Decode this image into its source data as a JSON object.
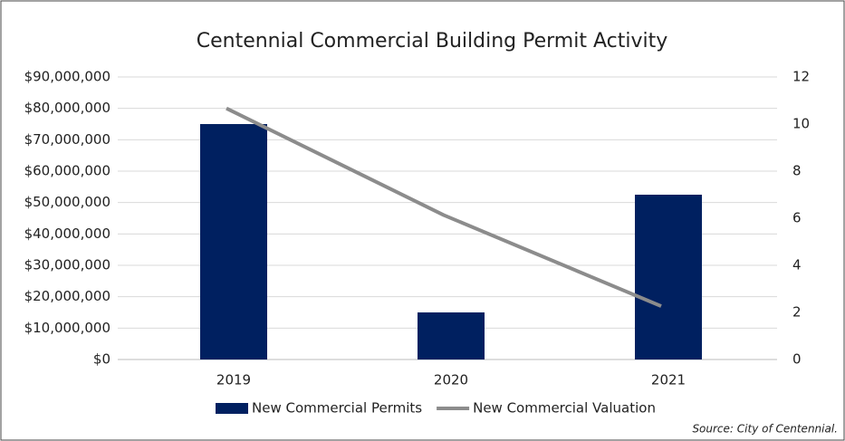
{
  "chart_data": {
    "type": "bar",
    "title": "Centennial Commercial Building Permit Activity",
    "categories": [
      "2019",
      "2020",
      "2021"
    ],
    "series": [
      {
        "name": "New Commercial Permits",
        "type": "bar",
        "axis": "y2",
        "color": "#002060",
        "values": [
          10,
          2,
          7
        ]
      },
      {
        "name": "New Commercial Valuation",
        "type": "line",
        "axis": "y",
        "color": "#8c8c8c",
        "values": [
          80000000,
          46000000,
          17000000
        ]
      }
    ],
    "ylim": [
      0,
      90000000
    ],
    "yticks": [
      {
        "value": 0,
        "label": "$0"
      },
      {
        "value": 10000000,
        "label": "$10,000,000"
      },
      {
        "value": 20000000,
        "label": "$20,000,000"
      },
      {
        "value": 30000000,
        "label": "$30,000,000"
      },
      {
        "value": 40000000,
        "label": "$40,000,000"
      },
      {
        "value": 50000000,
        "label": "$50,000,000"
      },
      {
        "value": 60000000,
        "label": "$60,000,000"
      },
      {
        "value": 70000000,
        "label": "$70,000,000"
      },
      {
        "value": 80000000,
        "label": "$80,000,000"
      },
      {
        "value": 90000000,
        "label": "$90,000,000"
      }
    ],
    "y2lim": [
      0,
      12
    ],
    "y2ticks": [
      0,
      2,
      4,
      6,
      8,
      10,
      12
    ],
    "grid": true,
    "legend": "bottom",
    "source": "Source: City of Centennial."
  }
}
